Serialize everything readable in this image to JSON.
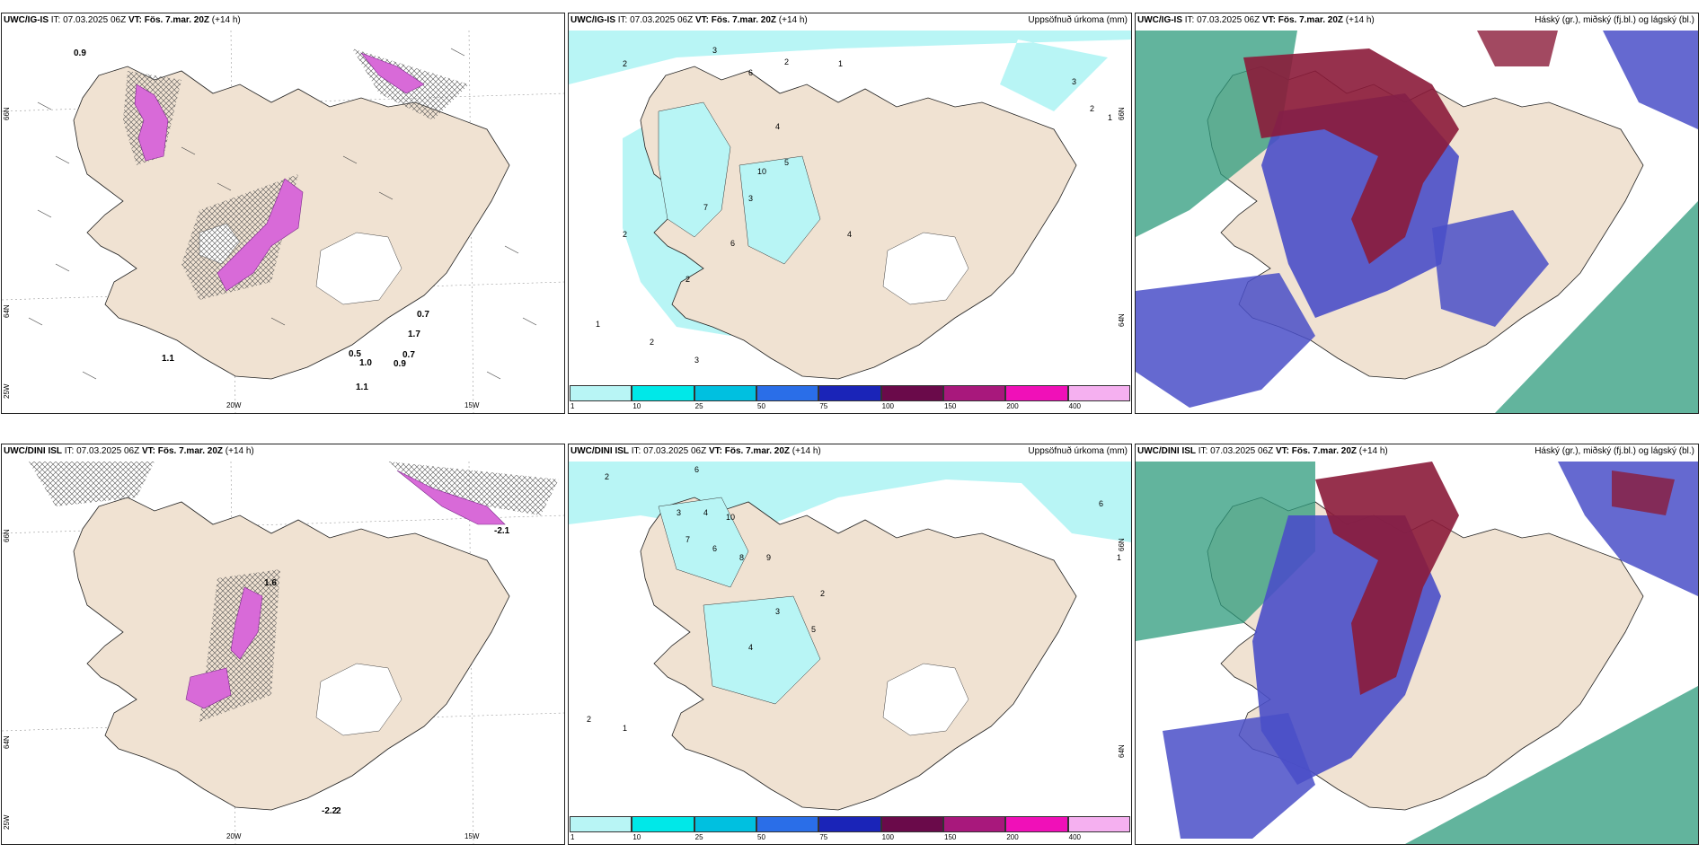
{
  "colors": {
    "land": "#f0e2d2",
    "sea": "#ffffff",
    "precip_light": "#b8f5f5",
    "cloud_high": "#8b1b3a",
    "cloud_mid": "#4a4fc8",
    "cloud_low": "#2e9b7c"
  },
  "rows": [
    {
      "model": "UWC/IG-IS",
      "it_label": "IT:",
      "it": "07.03.2025 06Z",
      "vt_label": "VT:",
      "vt": "Fös. 7.mar. 20Z",
      "lead": "(+14 h)"
    },
    {
      "model": "UWC/DINI ISL",
      "it_label": "IT:",
      "it": "07.03.2025 06Z",
      "vt_label": "VT:",
      "vt": "Fös. 7.mar. 20Z",
      "lead": "(+14 h)"
    }
  ],
  "precip_title": "Uppsöfnuð úrkoma (mm)",
  "cloud_title": "Háský (gr.), miðský (fj.bl.) og lágský (bl.)",
  "axes": {
    "lon_20": "20W",
    "lon_15": "15W",
    "lat_66": "66N",
    "lat_64": "64N",
    "lat_25": "25W"
  },
  "colorbar": {
    "ticks": [
      "1",
      "10",
      "25",
      "50",
      "75",
      "100",
      "150",
      "200",
      "400"
    ],
    "colors": [
      "#b8f5f5",
      "#00e8e8",
      "#00c0e0",
      "#2a6ee8",
      "#1a24b8",
      "#6a0a4a",
      "#a8187c",
      "#f010b8",
      "#f5b0f0"
    ]
  },
  "temp_labels_top": [
    "0.9",
    "1.1",
    "0.7",
    "1.7",
    "0.5",
    "1.0",
    "0.9",
    "0.7",
    "1.1"
  ],
  "temp_labels_bottom": [
    "-2.1",
    "1.6",
    "-2.2",
    "2"
  ],
  "precip_values_top": [
    "2",
    "3",
    "6",
    "2",
    "1",
    "4",
    "10",
    "5",
    "3",
    "7",
    "6",
    "2",
    "1",
    "2",
    "3",
    "2",
    "4",
    "3",
    "2",
    "1"
  ],
  "precip_values_bottom": [
    "2",
    "6",
    "3",
    "4",
    "10",
    "7",
    "6",
    "9",
    "8",
    "2",
    "3",
    "5",
    "4",
    "1",
    "2",
    "6",
    "1"
  ]
}
